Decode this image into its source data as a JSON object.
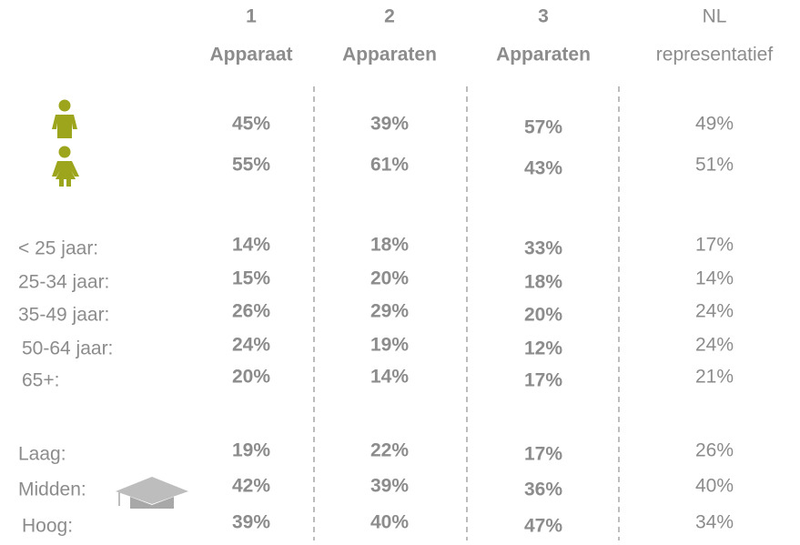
{
  "header": {
    "columns": [
      {
        "line1": "1",
        "line2": "Apparaat"
      },
      {
        "line1": "2",
        "line2": "Apparaten"
      },
      {
        "line1": "3",
        "line2": "Apparaten"
      },
      {
        "line1": "NL",
        "line2": "representatief"
      }
    ]
  },
  "groups": [
    {
      "rows": [
        {
          "values": [
            "45%",
            "39%",
            "57%",
            "49%"
          ]
        },
        {
          "values": [
            "55%",
            "61%",
            "43%",
            "51%"
          ]
        }
      ]
    },
    {
      "rows": [
        {
          "label": "< 25 jaar:",
          "values": [
            "14%",
            "18%",
            "33%",
            "17%"
          ]
        },
        {
          "label": "25-34 jaar:",
          "values": [
            "15%",
            "20%",
            "18%",
            "14%"
          ]
        },
        {
          "label": "35-49 jaar:",
          "values": [
            "26%",
            "29%",
            "20%",
            "24%"
          ]
        },
        {
          "label": "50-64 jaar:",
          "values": [
            "24%",
            "19%",
            "12%",
            "24%"
          ]
        },
        {
          "label": "65+:",
          "values": [
            "20%",
            "14%",
            "17%",
            "21%"
          ]
        }
      ]
    },
    {
      "rows": [
        {
          "label": "Laag:",
          "values": [
            "19%",
            "22%",
            "17%",
            "26%"
          ]
        },
        {
          "label": "Midden:",
          "values": [
            "42%",
            "39%",
            "36%",
            "40%"
          ]
        },
        {
          "label": "Hoog:",
          "values": [
            "39%",
            "40%",
            "47%",
            "34%"
          ]
        }
      ]
    }
  ]
}
